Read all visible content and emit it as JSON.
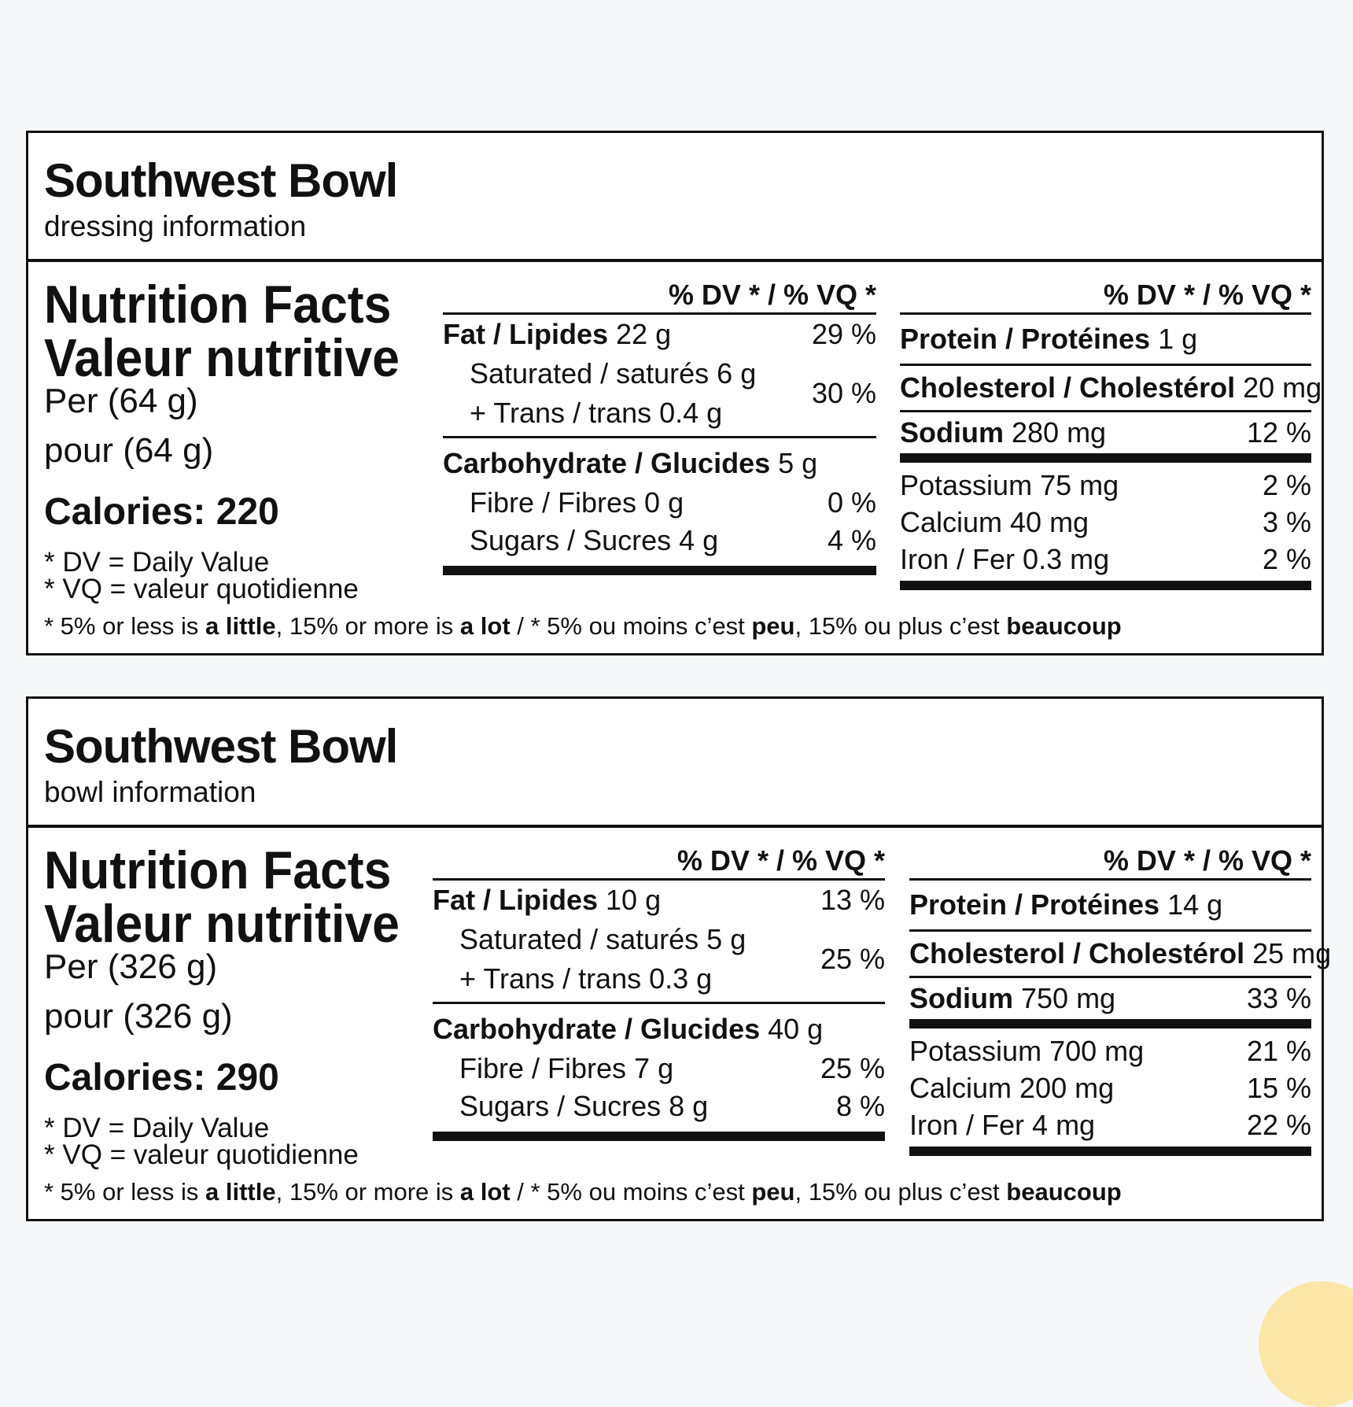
{
  "labels": [
    {
      "product_name": "Southwest Bowl",
      "subtitle": "dressing information",
      "title_en": "Nutrition Facts",
      "title_fr": "Valeur nutritive",
      "serving_en": "Per (64 g)",
      "serving_fr": "pour (64 g)",
      "calories": "Calories: 220",
      "dv_note_en": "* DV = Daily Value",
      "dv_note_fr": "* VQ = valeur quotidienne",
      "dv_header": "% DV * / % VQ *",
      "fat": {
        "label": "Fat / Lipides",
        "amount": " 22 g",
        "pct": "29 %"
      },
      "saturated": {
        "label": "Saturated / saturés 6 g"
      },
      "trans": {
        "label": "+ Trans / trans 0.4 g"
      },
      "sat_trans_pct": "30 %",
      "carbohydrate": {
        "label": "Carbohydrate / Glucides",
        "amount": " 5 g"
      },
      "fibre": {
        "label": "Fibre / Fibres 0 g",
        "pct": "0 %"
      },
      "sugars": {
        "label": "Sugars / Sucres 4 g",
        "pct": "4 %"
      },
      "protein": {
        "label": "Protein / Protéines",
        "amount": " 1 g"
      },
      "cholesterol": {
        "label": "Cholesterol / Cholestérol",
        "amount": " 20 mg"
      },
      "sodium": {
        "label": "Sodium",
        "amount": " 280 mg",
        "pct": "12 %"
      },
      "potassium": {
        "label": "Potassium 75 mg",
        "pct": "2 %"
      },
      "calcium": {
        "label": "Calcium 40 mg",
        "pct": "3 %"
      },
      "iron": {
        "label": "Iron / Fer 0.3 mg",
        "pct": "2 %"
      },
      "footnote": {
        "p1": "* 5% or less is ",
        "b1": "a little",
        "p2": ", 15% or more is ",
        "b2": "a lot",
        "p3": " / * 5% ou moins c’est ",
        "b3": "peu",
        "p4": ", 15% ou plus c’est ",
        "b4": "beaucoup"
      }
    },
    {
      "product_name": "Southwest Bowl",
      "subtitle": "bowl information",
      "title_en": "Nutrition Facts",
      "title_fr": "Valeur nutritive",
      "serving_en": "Per (326 g)",
      "serving_fr": "pour (326 g)",
      "calories": "Calories: 290",
      "dv_note_en": "* DV = Daily Value",
      "dv_note_fr": "* VQ = valeur quotidienne",
      "dv_header": "% DV * / % VQ *",
      "fat": {
        "label": "Fat / Lipides",
        "amount": " 10 g",
        "pct": "13 %"
      },
      "saturated": {
        "label": "Saturated / saturés 5 g"
      },
      "trans": {
        "label": "+ Trans / trans 0.3 g"
      },
      "sat_trans_pct": "25 %",
      "carbohydrate": {
        "label": "Carbohydrate / Glucides",
        "amount": " 40 g"
      },
      "fibre": {
        "label": "Fibre / Fibres 7 g",
        "pct": "25 %"
      },
      "sugars": {
        "label": "Sugars / Sucres 8 g",
        "pct": "8 %"
      },
      "protein": {
        "label": "Protein / Protéines",
        "amount": " 14 g"
      },
      "cholesterol": {
        "label": "Cholesterol / Cholestérol",
        "amount": " 25 mg"
      },
      "sodium": {
        "label": "Sodium",
        "amount": " 750 mg",
        "pct": "33 %"
      },
      "potassium": {
        "label": "Potassium 700 mg",
        "pct": "21 %"
      },
      "calcium": {
        "label": "Calcium 200 mg",
        "pct": "15 %"
      },
      "iron": {
        "label": "Iron / Fer 4 mg",
        "pct": "22 %"
      },
      "footnote": {
        "p1": "* 5% or less is ",
        "b1": "a little",
        "p2": ", 15% or more is ",
        "b2": "a lot",
        "p3": " / * 5% ou moins c’est ",
        "b3": "peu",
        "p4": ", 15% ou plus c’est ",
        "b4": "beaucoup"
      }
    }
  ]
}
